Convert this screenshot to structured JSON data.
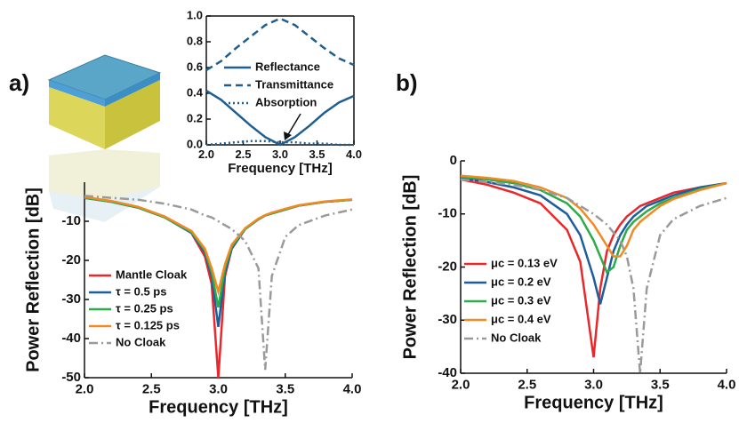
{
  "chart_data": [
    {
      "type": "line",
      "label": "a)",
      "xlabel": "Frequency [THz]",
      "ylabel": "Power Reflection  [dB]",
      "x": [
        2.0,
        2.2,
        2.4,
        2.6,
        2.8,
        2.9,
        2.95,
        3.0,
        3.05,
        3.1,
        3.2,
        3.3,
        3.35,
        3.4,
        3.5,
        3.6,
        3.8,
        4.0
      ],
      "xlim": [
        2.0,
        4.0
      ],
      "ylim": [
        -50,
        0
      ],
      "xticks": [
        {
          "value": 2,
          "label": "2.0"
        },
        2.5,
        {
          "value": 3,
          "label": "3.0"
        },
        3.5,
        {
          "value": 4,
          "label": "4.0"
        }
      ],
      "yticks": [
        -50,
        -40,
        -30,
        -20,
        -10
      ],
      "series": [
        {
          "name": "Mantle Cloak",
          "color": "#e8282b",
          "dash": "solid",
          "values": [
            -4,
            -5,
            -6.5,
            -9,
            -13,
            -19,
            -26,
            -50,
            -24,
            -17,
            -12,
            -9.5,
            -8.5,
            -8,
            -7,
            -6,
            -5,
            -4.5
          ]
        },
        {
          "name": "τ = 0.5 ps",
          "color": "#1f5e9e",
          "dash": "solid",
          "values": [
            -4,
            -5,
            -6.5,
            -9,
            -13,
            -18,
            -24,
            -37,
            -23,
            -17,
            -12,
            -9.5,
            -8.5,
            -8,
            -7,
            -6,
            -5,
            -4.5
          ]
        },
        {
          "name": "τ = 0.25 ps",
          "color": "#2eaa4a",
          "dash": "solid",
          "values": [
            -4,
            -5,
            -6.5,
            -9,
            -12.8,
            -17.5,
            -23,
            -32,
            -22,
            -16.5,
            -12,
            -9.5,
            -8.5,
            -8,
            -7,
            -6,
            -5,
            -4.5
          ]
        },
        {
          "name": "τ = 0.125 ps",
          "color": "#f08a24",
          "dash": "solid",
          "values": [
            -3.8,
            -4.8,
            -6.3,
            -8.8,
            -12.5,
            -17,
            -22,
            -28,
            -21,
            -16,
            -11.8,
            -9.3,
            -8.4,
            -7.8,
            -6.8,
            -5.9,
            -4.9,
            -4.4
          ]
        },
        {
          "name": "No Cloak",
          "color": "#9a9a9a",
          "dash": "dashdot",
          "values": [
            -3.5,
            -4,
            -4.5,
            -5.5,
            -7,
            -8.5,
            -9,
            -10,
            -11,
            -12,
            -15,
            -22,
            -48,
            -24,
            -14,
            -11,
            -8.5,
            -7
          ]
        }
      ]
    },
    {
      "type": "line",
      "xlabel": "Frequency [THz]",
      "x": [
        2.0,
        2.2,
        2.4,
        2.6,
        2.8,
        3.0,
        3.2,
        3.4,
        3.6,
        3.8,
        4.0
      ],
      "xlim": [
        2.0,
        4.0
      ],
      "ylim": [
        0,
        1
      ],
      "xticks": [
        {
          "value": 2,
          "label": "2.0"
        },
        2.5,
        {
          "value": 3,
          "label": "3.0"
        },
        3.5,
        {
          "value": 4,
          "label": "4.0"
        }
      ],
      "yticks": [
        {
          "value": 0,
          "label": "0.0"
        },
        0.2,
        0.4,
        0.6,
        0.8,
        {
          "value": 1,
          "label": "1.0"
        }
      ],
      "series": [
        {
          "name": "Reflectance",
          "color": "#1f5e8e",
          "dash": "solid",
          "values": [
            0.42,
            0.35,
            0.25,
            0.15,
            0.06,
            0.0,
            0.06,
            0.15,
            0.25,
            0.33,
            0.38
          ]
        },
        {
          "name": "Transmittance",
          "color": "#1f5e8e",
          "dash": "dashed",
          "values": [
            0.58,
            0.65,
            0.75,
            0.84,
            0.93,
            0.98,
            0.93,
            0.84,
            0.75,
            0.67,
            0.62
          ]
        },
        {
          "name": "Absorption",
          "color": "#1f5e8e",
          "dash": "dotted",
          "values": [
            0.0,
            0.01,
            0.02,
            0.03,
            0.03,
            0.02,
            0.02,
            0.01,
            0.01,
            0.0,
            0.0
          ]
        }
      ]
    },
    {
      "type": "line",
      "label": "b)",
      "xlabel": "Frequency [THz]",
      "ylabel": "Power Reflection  [dB]",
      "x": [
        2.0,
        2.2,
        2.4,
        2.6,
        2.8,
        2.9,
        3.0,
        3.05,
        3.1,
        3.15,
        3.2,
        3.25,
        3.3,
        3.35,
        3.4,
        3.5,
        3.6,
        3.8,
        4.0
      ],
      "xlim": [
        2.0,
        4.0
      ],
      "ylim": [
        -40,
        0
      ],
      "xticks": [
        {
          "value": 2,
          "label": "2.0"
        },
        2.5,
        {
          "value": 3,
          "label": "3.0"
        },
        3.5,
        {
          "value": 4,
          "label": "4.0"
        }
      ],
      "yticks": [
        -40,
        -30,
        -20,
        -10,
        0
      ],
      "series": [
        {
          "name": "μc = 0.13 eV",
          "color": "#e8282b",
          "dash": "solid",
          "values": [
            -3.5,
            -4.5,
            -6,
            -8,
            -13,
            -19,
            -37,
            -24,
            -17,
            -14,
            -12,
            -10.5,
            -9.5,
            -8.5,
            -8,
            -7,
            -6,
            -5,
            -4.2
          ]
        },
        {
          "name": "μc = 0.2 eV",
          "color": "#1f5e9e",
          "dash": "solid",
          "values": [
            -3.2,
            -4,
            -5,
            -6.5,
            -10,
            -14,
            -22,
            -27,
            -22,
            -17,
            -14,
            -12,
            -10.5,
            -9.5,
            -8.5,
            -7.5,
            -6.5,
            -5,
            -4.2
          ]
        },
        {
          "name": "μc = 0.3 eV",
          "color": "#2eaa4a",
          "dash": "solid",
          "values": [
            -3,
            -3.5,
            -4.2,
            -5.5,
            -8,
            -10.5,
            -15,
            -18,
            -21,
            -20,
            -16,
            -13,
            -11.5,
            -10.5,
            -9.5,
            -8,
            -7,
            -5.3,
            -4.2
          ]
        },
        {
          "name": "μc = 0.4 eV",
          "color": "#f08a24",
          "dash": "solid",
          "values": [
            -2.8,
            -3.2,
            -3.8,
            -5,
            -7,
            -9,
            -12,
            -14,
            -16,
            -18,
            -18,
            -16,
            -13,
            -11.5,
            -10.5,
            -8.5,
            -7.2,
            -5.5,
            -4.2
          ]
        },
        {
          "name": "No Cloak",
          "color": "#9a9a9a",
          "dash": "dashdot",
          "values": [
            -3.5,
            -4,
            -4.5,
            -5.5,
            -7,
            -8.5,
            -10,
            -11,
            -12,
            -13.5,
            -15,
            -18,
            -24,
            -40,
            -24,
            -14,
            -11,
            -8.5,
            -7
          ]
        }
      ]
    }
  ]
}
